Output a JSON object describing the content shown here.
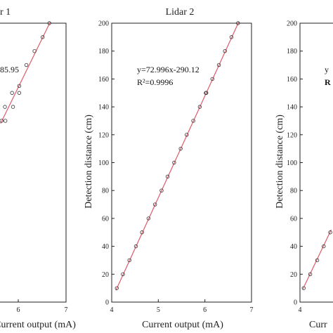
{
  "chart_data": [
    {
      "type": "scatter",
      "title": "r 1",
      "xlabel": "Current output (mA)",
      "ylabel": "",
      "xlim": [
        4,
        7
      ],
      "ylim": [
        0,
        200
      ],
      "x_ticks": [
        6,
        7
      ],
      "y_ticks": [],
      "equation_text": "85.95",
      "r2_text": "",
      "fit": {
        "slope": 70.0,
        "intercept": -266.0
      },
      "points": [
        {
          "x": 5.65,
          "y": 130
        },
        {
          "x": 5.72,
          "y": 140
        },
        {
          "x": 5.87,
          "y": 150
        },
        {
          "x": 5.73,
          "y": 130
        },
        {
          "x": 5.89,
          "y": 140
        },
        {
          "x": 6.02,
          "y": 150
        },
        {
          "x": 6.02,
          "y": 155
        },
        {
          "x": 6.17,
          "y": 170
        },
        {
          "x": 6.34,
          "y": 180
        },
        {
          "x": 6.51,
          "y": 190
        },
        {
          "x": 6.65,
          "y": 200
        }
      ]
    },
    {
      "type": "scatter",
      "title": "Lidar 2",
      "xlabel": "Current output (mA)",
      "ylabel": "Detection distance (cm)",
      "xlim": [
        4,
        7
      ],
      "ylim": [
        0,
        200
      ],
      "x_ticks": [
        4,
        5,
        6,
        7
      ],
      "y_ticks": [
        0,
        20,
        40,
        60,
        80,
        100,
        120,
        140,
        160,
        180,
        200
      ],
      "equation_text": "y=72.996x-290.12",
      "r2_text": "R²=0.9996",
      "fit": {
        "slope": 72.996,
        "intercept": -290.12
      },
      "points": [
        {
          "x": 4.11,
          "y": 10
        },
        {
          "x": 4.24,
          "y": 20
        },
        {
          "x": 4.38,
          "y": 30
        },
        {
          "x": 4.52,
          "y": 40
        },
        {
          "x": 4.65,
          "y": 50
        },
        {
          "x": 4.79,
          "y": 60
        },
        {
          "x": 4.93,
          "y": 70
        },
        {
          "x": 5.07,
          "y": 80
        },
        {
          "x": 5.2,
          "y": 90
        },
        {
          "x": 5.34,
          "y": 100
        },
        {
          "x": 5.48,
          "y": 110
        },
        {
          "x": 5.61,
          "y": 120
        },
        {
          "x": 5.75,
          "y": 130
        },
        {
          "x": 5.89,
          "y": 140
        },
        {
          "x": 6.02,
          "y": 150
        },
        {
          "x": 6.03,
          "y": 150
        },
        {
          "x": 6.16,
          "y": 160
        },
        {
          "x": 6.3,
          "y": 170
        },
        {
          "x": 6.43,
          "y": 180
        },
        {
          "x": 6.57,
          "y": 190
        },
        {
          "x": 6.71,
          "y": 200
        }
      ]
    },
    {
      "type": "scatter",
      "title": "",
      "xlabel": "Curr",
      "ylabel": "Detection distance (cm)",
      "xlim": [
        4,
        7
      ],
      "ylim": [
        0,
        200
      ],
      "x_ticks": [
        4
      ],
      "y_ticks": [
        0,
        20,
        40,
        60,
        80,
        100,
        120,
        140,
        160,
        180,
        200
      ],
      "equation_text": "y",
      "r2_text": "R",
      "fit": {
        "slope": 70.0,
        "intercept": -275.0
      },
      "points": [
        {
          "x": 4.08,
          "y": 10
        },
        {
          "x": 4.22,
          "y": 20
        },
        {
          "x": 4.37,
          "y": 30
        },
        {
          "x": 4.51,
          "y": 40
        },
        {
          "x": 4.65,
          "y": 50
        }
      ]
    }
  ]
}
